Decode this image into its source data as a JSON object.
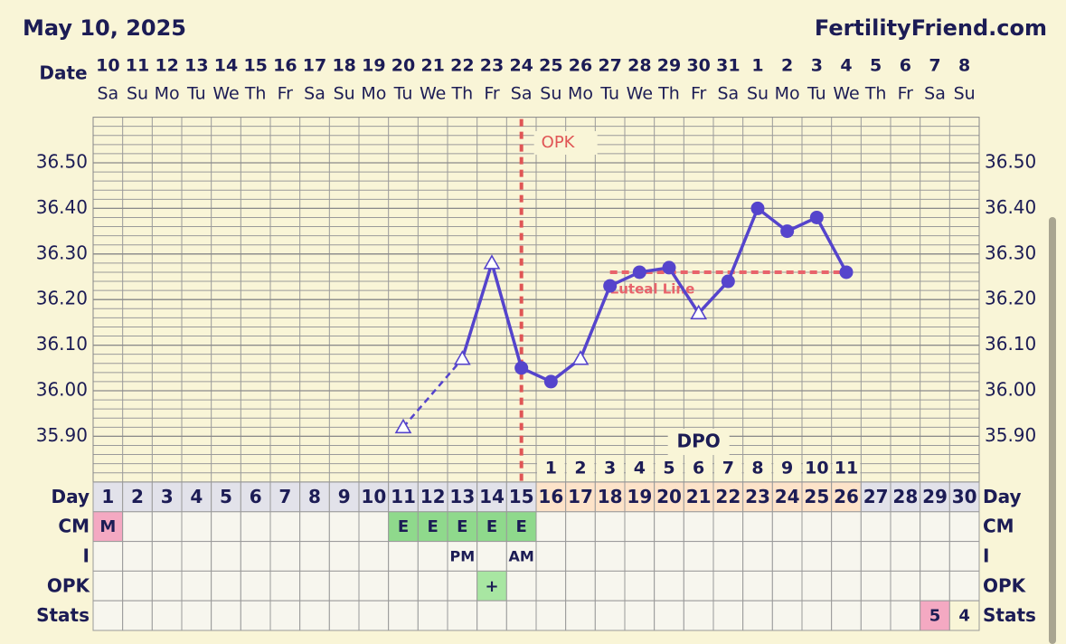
{
  "header": {
    "date": "May 10, 2025",
    "site": "FertilityFriend.com"
  },
  "chart_data": {
    "type": "line",
    "x_label": "Date",
    "categories": [
      "10",
      "11",
      "12",
      "13",
      "14",
      "15",
      "16",
      "17",
      "18",
      "19",
      "20",
      "21",
      "22",
      "23",
      "24",
      "25",
      "26",
      "27",
      "28",
      "29",
      "30",
      "31",
      "1",
      "2",
      "3",
      "4",
      "5",
      "6",
      "7",
      "8"
    ],
    "weekdays": [
      "Sa",
      "Su",
      "Mo",
      "Tu",
      "We",
      "Th",
      "Fr",
      "Sa",
      "Su",
      "Mo",
      "Tu",
      "We",
      "Th",
      "Fr",
      "Sa",
      "Su",
      "Mo",
      "Tu",
      "We",
      "Th",
      "Fr",
      "Sa",
      "Su",
      "Mo",
      "Tu",
      "We",
      "Th",
      "Fr",
      "Sa",
      "Su"
    ],
    "values": [
      null,
      null,
      null,
      null,
      null,
      null,
      null,
      null,
      null,
      null,
      35.92,
      null,
      36.07,
      36.28,
      36.05,
      36.02,
      36.07,
      36.23,
      36.26,
      36.27,
      36.17,
      36.24,
      36.4,
      36.35,
      36.38,
      36.26,
      null,
      null,
      null,
      null
    ],
    "markers": [
      null,
      null,
      null,
      null,
      null,
      null,
      null,
      null,
      null,
      null,
      "triangle",
      null,
      "triangle",
      "triangle",
      "circle",
      "circle",
      "triangle",
      "circle",
      "circle",
      "circle",
      "triangle",
      "circle",
      "circle",
      "circle",
      "circle",
      "circle",
      null,
      null,
      null,
      null
    ],
    "color": "#5544cc",
    "ylim": [
      35.8,
      36.6
    ],
    "yticks": [
      {
        "value": 35.9,
        "label": "35.90"
      },
      {
        "value": 36.0,
        "label": "36.00"
      },
      {
        "value": 36.1,
        "label": "36.10"
      },
      {
        "value": 36.2,
        "label": "36.20"
      },
      {
        "value": 36.3,
        "label": "36.30"
      },
      {
        "value": 36.4,
        "label": "36.40"
      },
      {
        "value": 36.5,
        "label": "36.50"
      }
    ],
    "grid": true,
    "coverline": {
      "label": "Luteal Line",
      "color": "#e8636b",
      "values": [
        null,
        null,
        null,
        null,
        null,
        null,
        null,
        null,
        null,
        null,
        null,
        null,
        null,
        null,
        null,
        null,
        null,
        36.26,
        36.26,
        36.26,
        36.26,
        36.26,
        36.26,
        36.26,
        36.26,
        36.26,
        null,
        null,
        null,
        null
      ]
    },
    "event": {
      "label": "OPK",
      "category": "24",
      "color": "#e05555"
    },
    "dpo": {
      "label": "DPO",
      "values": [
        null,
        null,
        null,
        null,
        null,
        null,
        null,
        null,
        null,
        null,
        null,
        null,
        null,
        null,
        null,
        1,
        2,
        3,
        4,
        5,
        6,
        7,
        8,
        9,
        10,
        11,
        null,
        null,
        null,
        null
      ]
    }
  },
  "table": {
    "rows": [
      {
        "label": "Day",
        "cells": [
          1,
          2,
          3,
          4,
          5,
          6,
          7,
          8,
          9,
          10,
          11,
          12,
          13,
          14,
          15,
          16,
          17,
          18,
          19,
          20,
          21,
          22,
          23,
          24,
          25,
          26,
          27,
          28,
          29,
          30
        ],
        "colors": [
          null,
          null,
          null,
          null,
          null,
          null,
          null,
          null,
          null,
          null,
          null,
          null,
          null,
          null,
          null,
          "#fde3c9",
          "#fde3c9",
          "#fde3c9",
          "#fde3c9",
          "#fde3c9",
          "#fde3c9",
          "#fde3c9",
          "#fde3c9",
          "#fde3c9",
          "#fde3c9",
          "#fde3c9",
          null,
          null,
          null,
          null
        ]
      },
      {
        "label": "CM",
        "cells": [
          "M",
          null,
          null,
          null,
          null,
          null,
          null,
          null,
          null,
          null,
          "E",
          "E",
          "E",
          "E",
          "E",
          null,
          null,
          null,
          null,
          null,
          null,
          null,
          null,
          null,
          null,
          null,
          null,
          null,
          null,
          null
        ],
        "colors": [
          "#f4a9c2",
          null,
          null,
          null,
          null,
          null,
          null,
          null,
          null,
          null,
          "#8fd98c",
          "#8fd98c",
          "#8fd98c",
          "#8fd98c",
          "#8fd98c",
          null,
          null,
          null,
          null,
          null,
          null,
          null,
          null,
          null,
          null,
          null,
          null,
          null,
          null,
          null
        ]
      },
      {
        "label": "I",
        "cells": [
          null,
          null,
          null,
          null,
          null,
          null,
          null,
          null,
          null,
          null,
          null,
          null,
          "PM",
          null,
          "AM",
          null,
          null,
          null,
          null,
          null,
          null,
          null,
          null,
          null,
          null,
          null,
          null,
          null,
          null,
          null
        ],
        "colors": [
          null,
          null,
          null,
          null,
          null,
          null,
          null,
          null,
          null,
          null,
          null,
          null,
          null,
          null,
          null,
          null,
          null,
          null,
          null,
          null,
          null,
          null,
          null,
          null,
          null,
          null,
          null,
          null,
          null,
          null
        ]
      },
      {
        "label": "OPK",
        "cells": [
          null,
          null,
          null,
          null,
          null,
          null,
          null,
          null,
          null,
          null,
          null,
          null,
          null,
          "+",
          null,
          null,
          null,
          null,
          null,
          null,
          null,
          null,
          null,
          null,
          null,
          null,
          null,
          null,
          null,
          null
        ],
        "colors": [
          null,
          null,
          null,
          null,
          null,
          null,
          null,
          null,
          null,
          null,
          null,
          null,
          null,
          "#a8e6a2",
          null,
          null,
          null,
          null,
          null,
          null,
          null,
          null,
          null,
          null,
          null,
          null,
          null,
          null,
          null,
          null
        ]
      },
      {
        "label": "Stats",
        "cells": [
          null,
          null,
          null,
          null,
          null,
          null,
          null,
          null,
          null,
          null,
          null,
          null,
          null,
          null,
          null,
          null,
          null,
          null,
          null,
          null,
          null,
          null,
          null,
          null,
          null,
          null,
          null,
          null,
          5,
          4
        ],
        "colors": [
          null,
          null,
          null,
          null,
          null,
          null,
          null,
          null,
          null,
          null,
          null,
          null,
          null,
          null,
          null,
          null,
          null,
          null,
          null,
          null,
          null,
          null,
          null,
          null,
          null,
          null,
          null,
          null,
          "#f4a9c2",
          "#f9f5d7"
        ]
      }
    ]
  }
}
